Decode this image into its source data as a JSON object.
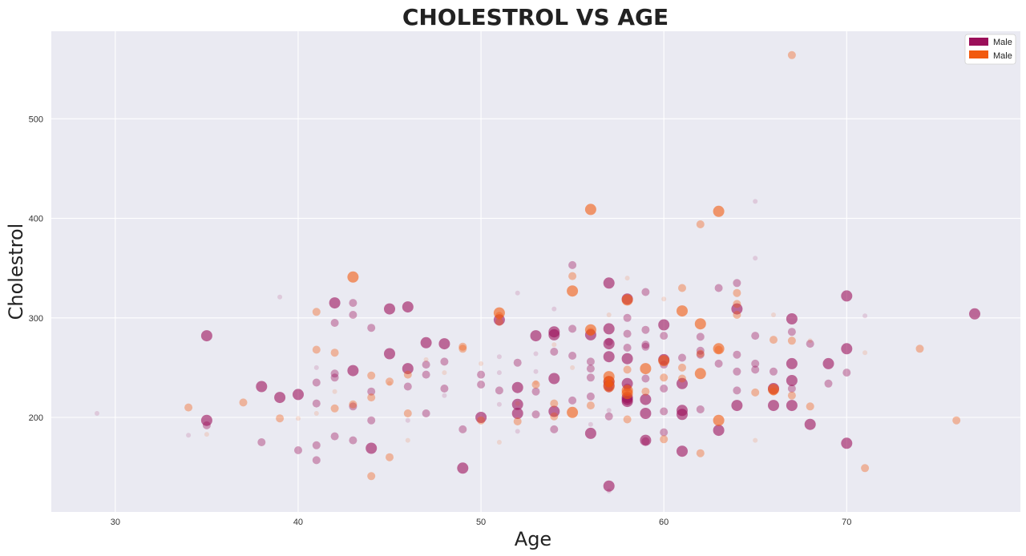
{
  "chart_data": {
    "type": "scatter",
    "title": "CHOLESTROL VS AGE",
    "xlabel": "Age",
    "ylabel": "Cholestrol",
    "xlim": [
      26.5,
      79.5
    ],
    "ylim": [
      105,
      588
    ],
    "xticks": [
      30,
      40,
      50,
      60,
      70
    ],
    "yticks": [
      200,
      300,
      400,
      500
    ],
    "grid": true,
    "legend": {
      "position": "top-right",
      "entries": [
        {
          "label": "Male",
          "color": "#9b0f5a"
        },
        {
          "label": "Male",
          "color": "#f25a0f"
        }
      ]
    },
    "series": [
      {
        "name": "Male",
        "color": "#9b0f5a",
        "note": "point triples are [age, cholestrol, marker-size (relative)]",
        "points": [
          [
            29,
            204,
            1
          ],
          [
            34,
            182,
            1
          ],
          [
            35,
            282,
            3
          ],
          [
            35,
            197,
            3
          ],
          [
            35,
            192,
            2
          ],
          [
            38,
            231,
            3
          ],
          [
            38,
            175,
            2
          ],
          [
            39,
            220,
            3
          ],
          [
            39,
            321,
            1
          ],
          [
            40,
            223,
            3
          ],
          [
            40,
            167,
            2
          ],
          [
            41,
            250,
            1
          ],
          [
            41,
            235,
            2
          ],
          [
            41,
            214,
            2
          ],
          [
            41,
            172,
            2
          ],
          [
            41,
            157,
            2
          ],
          [
            42,
            315,
            3
          ],
          [
            42,
            295,
            2
          ],
          [
            42,
            244,
            2
          ],
          [
            42,
            240,
            2
          ],
          [
            42,
            181,
            2
          ],
          [
            43,
            315,
            2
          ],
          [
            43,
            303,
            2
          ],
          [
            43,
            247,
            3
          ],
          [
            43,
            211,
            2
          ],
          [
            43,
            177,
            2
          ],
          [
            44,
            290,
            2
          ],
          [
            44,
            226,
            2
          ],
          [
            44,
            197,
            2
          ],
          [
            44,
            169,
            3
          ],
          [
            45,
            309,
            3
          ],
          [
            45,
            264,
            3
          ],
          [
            46,
            311,
            3
          ],
          [
            46,
            249,
            3
          ],
          [
            46,
            231,
            2
          ],
          [
            46,
            197,
            1
          ],
          [
            47,
            275,
            3
          ],
          [
            47,
            253,
            2
          ],
          [
            47,
            243,
            2
          ],
          [
            47,
            204,
            2
          ],
          [
            48,
            274,
            3
          ],
          [
            48,
            256,
            2
          ],
          [
            48,
            229,
            2
          ],
          [
            48,
            222,
            1
          ],
          [
            49,
            188,
            2
          ],
          [
            49,
            149,
            3
          ],
          [
            50,
            243,
            2
          ],
          [
            50,
            233,
            2
          ],
          [
            50,
            200,
            3
          ],
          [
            51,
            298,
            3
          ],
          [
            51,
            261,
            1
          ],
          [
            51,
            245,
            1
          ],
          [
            51,
            227,
            2
          ],
          [
            51,
            213,
            1
          ],
          [
            52,
            255,
            2
          ],
          [
            52,
            230,
            3
          ],
          [
            52,
            213,
            3
          ],
          [
            52,
            204,
            3
          ],
          [
            52,
            186,
            1
          ],
          [
            52,
            325,
            1
          ],
          [
            53,
            282,
            3
          ],
          [
            53,
            264,
            1
          ],
          [
            53,
            246,
            1
          ],
          [
            53,
            226,
            2
          ],
          [
            53,
            203,
            2
          ],
          [
            54,
            286,
            3
          ],
          [
            54,
            283,
            3
          ],
          [
            54,
            266,
            2
          ],
          [
            54,
            239,
            3
          ],
          [
            54,
            206,
            3
          ],
          [
            54,
            188,
            2
          ],
          [
            54,
            309,
            1
          ],
          [
            55,
            353,
            2
          ],
          [
            55,
            289,
            2
          ],
          [
            55,
            262,
            2
          ],
          [
            55,
            217,
            2
          ],
          [
            56,
            283,
            3
          ],
          [
            56,
            256,
            2
          ],
          [
            56,
            249,
            2
          ],
          [
            56,
            240,
            2
          ],
          [
            56,
            221,
            2
          ],
          [
            56,
            193,
            1
          ],
          [
            56,
            184,
            3
          ],
          [
            57,
            335,
            3
          ],
          [
            57,
            289,
            3
          ],
          [
            57,
            276,
            2
          ],
          [
            57,
            274,
            3
          ],
          [
            57,
            261,
            3
          ],
          [
            57,
            236,
            3
          ],
          [
            57,
            232,
            3
          ],
          [
            57,
            229,
            2
          ],
          [
            57,
            207,
            1
          ],
          [
            57,
            201,
            2
          ],
          [
            57,
            131,
            3
          ],
          [
            57,
            126,
            1
          ],
          [
            58,
            319,
            3
          ],
          [
            58,
            300,
            2
          ],
          [
            58,
            284,
            2
          ],
          [
            58,
            270,
            2
          ],
          [
            58,
            259,
            3
          ],
          [
            58,
            234,
            3
          ],
          [
            58,
            230,
            2
          ],
          [
            58,
            220,
            3
          ],
          [
            58,
            216,
            3
          ],
          [
            58,
            218,
            3
          ],
          [
            59,
            326,
            2
          ],
          [
            59,
            288,
            2
          ],
          [
            59,
            273,
            2
          ],
          [
            59,
            271,
            2
          ],
          [
            59,
            239,
            2
          ],
          [
            59,
            218,
            3
          ],
          [
            59,
            204,
            3
          ],
          [
            59,
            177,
            3
          ],
          [
            59,
            176,
            2
          ],
          [
            60,
            293,
            3
          ],
          [
            60,
            282,
            2
          ],
          [
            60,
            258,
            3
          ],
          [
            60,
            253,
            2
          ],
          [
            60,
            229,
            2
          ],
          [
            60,
            206,
            2
          ],
          [
            60,
            185,
            2
          ],
          [
            61,
            260,
            2
          ],
          [
            61,
            234,
            3
          ],
          [
            61,
            207,
            3
          ],
          [
            61,
            203,
            3
          ],
          [
            61,
            166,
            3
          ],
          [
            62,
            281,
            2
          ],
          [
            62,
            267,
            2
          ],
          [
            62,
            263,
            2
          ],
          [
            62,
            208,
            2
          ],
          [
            63,
            330,
            2
          ],
          [
            63,
            254,
            2
          ],
          [
            63,
            187,
            3
          ],
          [
            64,
            335,
            2
          ],
          [
            64,
            309,
            3
          ],
          [
            64,
            263,
            2
          ],
          [
            64,
            246,
            2
          ],
          [
            64,
            227,
            2
          ],
          [
            64,
            212,
            3
          ],
          [
            65,
            282,
            2
          ],
          [
            65,
            254,
            2
          ],
          [
            65,
            248,
            2
          ],
          [
            65,
            417,
            1
          ],
          [
            65,
            360,
            1
          ],
          [
            66,
            246,
            2
          ],
          [
            66,
            229,
            3
          ],
          [
            66,
            212,
            3
          ],
          [
            67,
            299,
            3
          ],
          [
            67,
            286,
            2
          ],
          [
            67,
            254,
            3
          ],
          [
            67,
            237,
            3
          ],
          [
            67,
            229,
            2
          ],
          [
            67,
            212,
            3
          ],
          [
            68,
            274,
            2
          ],
          [
            68,
            193,
            3
          ],
          [
            69,
            254,
            3
          ],
          [
            69,
            234,
            2
          ],
          [
            70,
            322,
            3
          ],
          [
            70,
            269,
            3
          ],
          [
            70,
            245,
            2
          ],
          [
            70,
            174,
            3
          ],
          [
            71,
            302,
            1
          ],
          [
            77,
            304,
            3
          ]
        ]
      },
      {
        "name": "Male",
        "color": "#f25a0f",
        "note": "point triples are [age, cholestrol, marker-size (relative)]",
        "points": [
          [
            34,
            210,
            2
          ],
          [
            35,
            183,
            1
          ],
          [
            37,
            215,
            2
          ],
          [
            39,
            199,
            2
          ],
          [
            40,
            199,
            1
          ],
          [
            41,
            306,
            2
          ],
          [
            41,
            268,
            2
          ],
          [
            41,
            204,
            1
          ],
          [
            42,
            265,
            2
          ],
          [
            42,
            209,
            2
          ],
          [
            42,
            226,
            1
          ],
          [
            43,
            341,
            3
          ],
          [
            43,
            213,
            2
          ],
          [
            44,
            242,
            2
          ],
          [
            44,
            220,
            2
          ],
          [
            44,
            141,
            2
          ],
          [
            45,
            236,
            2
          ],
          [
            45,
            234,
            1
          ],
          [
            45,
            160,
            2
          ],
          [
            46,
            243,
            2
          ],
          [
            46,
            204,
            2
          ],
          [
            46,
            177,
            1
          ],
          [
            47,
            258,
            1
          ],
          [
            48,
            245,
            1
          ],
          [
            49,
            271,
            2
          ],
          [
            49,
            269,
            2
          ],
          [
            50,
            254,
            1
          ],
          [
            50,
            197,
            2
          ],
          [
            51,
            305,
            3
          ],
          [
            51,
            302,
            2
          ],
          [
            51,
            296,
            2
          ],
          [
            51,
            175,
            1
          ],
          [
            52,
            196,
            2
          ],
          [
            52,
            214,
            1
          ],
          [
            53,
            233,
            2
          ],
          [
            53,
            235,
            1
          ],
          [
            54,
            214,
            2
          ],
          [
            54,
            201,
            2
          ],
          [
            54,
            273,
            1
          ],
          [
            55,
            342,
            2
          ],
          [
            55,
            327,
            3
          ],
          [
            55,
            250,
            1
          ],
          [
            55,
            205,
            3
          ],
          [
            56,
            409,
            3
          ],
          [
            56,
            288,
            3
          ],
          [
            56,
            286,
            2
          ],
          [
            56,
            212,
            2
          ],
          [
            57,
            241,
            3
          ],
          [
            57,
            236,
            3
          ],
          [
            57,
            234,
            2
          ],
          [
            57,
            231,
            3
          ],
          [
            57,
            303,
            1
          ],
          [
            58,
            318,
            3
          ],
          [
            58,
            248,
            2
          ],
          [
            58,
            227,
            3
          ],
          [
            58,
            224,
            3
          ],
          [
            58,
            198,
            2
          ],
          [
            58,
            340,
            1
          ],
          [
            59,
            249,
            3
          ],
          [
            59,
            226,
            2
          ],
          [
            60,
            257,
            3
          ],
          [
            60,
            240,
            2
          ],
          [
            60,
            178,
            2
          ],
          [
            60,
            319,
            1
          ],
          [
            61,
            330,
            2
          ],
          [
            61,
            307,
            3
          ],
          [
            61,
            250,
            2
          ],
          [
            61,
            239,
            2
          ],
          [
            62,
            394,
            2
          ],
          [
            62,
            294,
            3
          ],
          [
            62,
            264,
            2
          ],
          [
            62,
            244,
            3
          ],
          [
            62,
            164,
            2
          ],
          [
            63,
            407,
            3
          ],
          [
            63,
            269,
            3
          ],
          [
            63,
            268,
            2
          ],
          [
            63,
            197,
            3
          ],
          [
            64,
            325,
            2
          ],
          [
            64,
            303,
            2
          ],
          [
            64,
            314,
            2
          ],
          [
            65,
            225,
            2
          ],
          [
            65,
            177,
            1
          ],
          [
            66,
            278,
            2
          ],
          [
            66,
            228,
            3
          ],
          [
            66,
            226,
            2
          ],
          [
            66,
            303,
            1
          ],
          [
            67,
            564,
            2
          ],
          [
            67,
            277,
            2
          ],
          [
            67,
            222,
            2
          ],
          [
            68,
            211,
            2
          ],
          [
            68,
            277,
            1
          ],
          [
            71,
            149,
            2
          ],
          [
            71,
            265,
            1
          ],
          [
            74,
            269,
            2
          ],
          [
            76,
            197,
            2
          ]
        ]
      }
    ]
  }
}
